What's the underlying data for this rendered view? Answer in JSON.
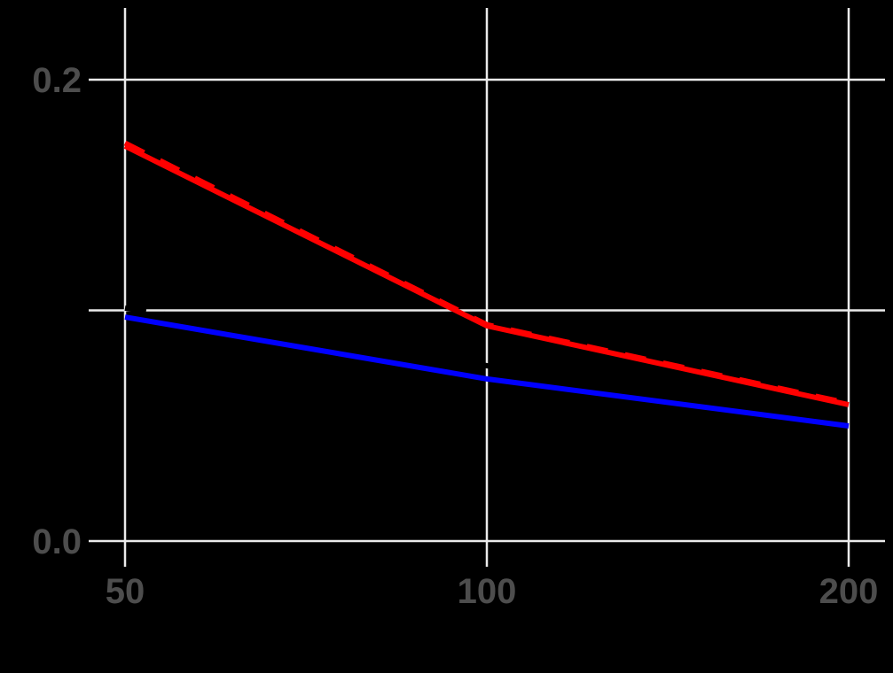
{
  "chart_data": {
    "type": "line",
    "title": "",
    "xlabel": "",
    "ylabel": "",
    "x_scale": "log",
    "x": [
      50,
      100,
      200
    ],
    "xticks": [
      50,
      100,
      200
    ],
    "xtick_labels": [
      "50",
      "100",
      "200"
    ],
    "yticks": [
      0.0,
      0.2
    ],
    "ytick_labels": [
      "0.0",
      "0.2"
    ],
    "y_minor_gridlines": [
      0.1
    ],
    "xlim": [
      45,
      210
    ],
    "ylim": [
      -0.011,
      0.231
    ],
    "grid": true,
    "legend": null,
    "background": "#000000",
    "gridline_color": "#EBEBEB",
    "tick_label_color": "#4D4D4D",
    "series": [
      {
        "name": "red-solid",
        "color": "#FF0000",
        "style": "solid",
        "values": [
          0.1712,
          0.0933,
          0.0591
        ]
      },
      {
        "name": "red-dashed",
        "color": "#FF0000",
        "style": "dashed",
        "values": [
          0.1725,
          0.0938,
          0.0597
        ]
      },
      {
        "name": "blue-solid",
        "color": "#0000FF",
        "style": "solid",
        "values": [
          0.0971,
          0.0703,
          0.0499
        ]
      },
      {
        "name": "black-dashed",
        "color": "#000000",
        "style": "dashed",
        "values": [
          0.101,
          0.076,
          0.054
        ]
      }
    ]
  }
}
